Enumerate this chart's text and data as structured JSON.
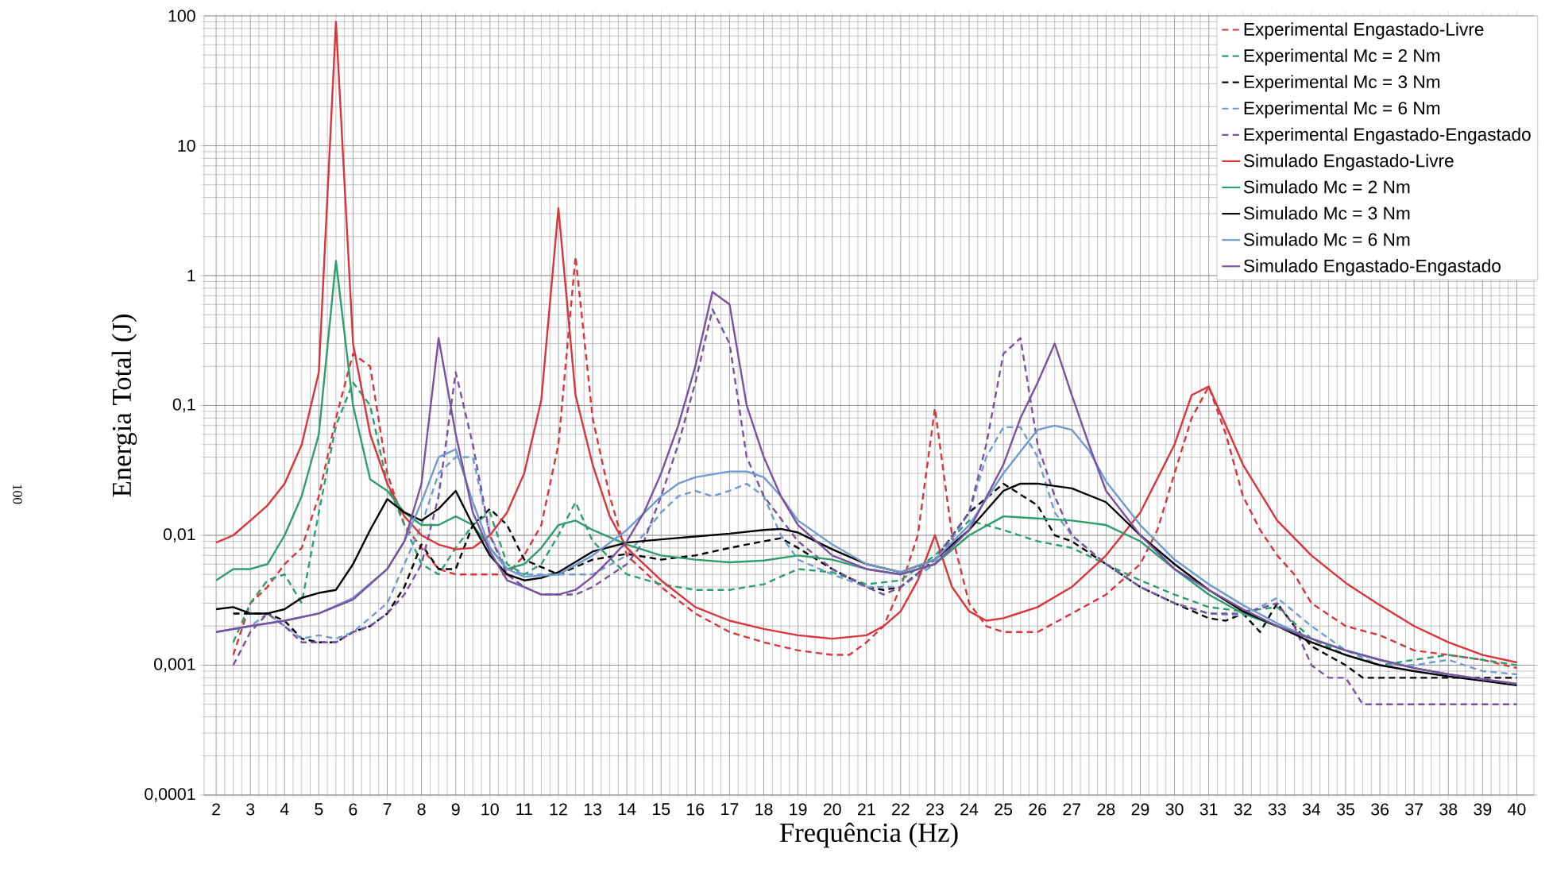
{
  "chart_data": {
    "type": "line",
    "xlabel": "Frequência (Hz)",
    "ylabel": "Energia Total (J)",
    "log": "y",
    "grid": true,
    "legend": "top right",
    "annotations": [
      "100"
    ],
    "xlim": [
      1.65,
      40.5
    ],
    "xticks": [
      2,
      3,
      4,
      5,
      6,
      7,
      8,
      9,
      10,
      11,
      12,
      13,
      14,
      15,
      16,
      17,
      18,
      19,
      20,
      21,
      22,
      23,
      24,
      25,
      26,
      27,
      28,
      29,
      30,
      31,
      32,
      33,
      34,
      35,
      36,
      37,
      38,
      39,
      40
    ],
    "ylim": [
      0.0001,
      100
    ],
    "yticks": [
      {
        "value": 0.0001,
        "label": "0,0001"
      },
      {
        "value": 0.001,
        "label": "0,001"
      },
      {
        "value": 0.01,
        "label": "0,01"
      },
      {
        "value": 0.1,
        "label": "0,1"
      },
      1,
      10,
      100
    ],
    "series": [
      {
        "name": "Experimental Engastado-Livre",
        "color": "#d9353a",
        "line_style": "dashed",
        "x": [
          2.5,
          3,
          3.5,
          4,
          4.5,
          5,
          5.5,
          6,
          6.5,
          7,
          7.5,
          8,
          8.5,
          9,
          10,
          10.5,
          11,
          11.5,
          12,
          12.5,
          13,
          13.5,
          14,
          15,
          16,
          17,
          18,
          19,
          20,
          20.5,
          21,
          21.5,
          22,
          22.5,
          23,
          23.5,
          24,
          24.5,
          25,
          26,
          27,
          28,
          29,
          29.5,
          30,
          30.5,
          31,
          31.5,
          32,
          32.5,
          33,
          33.5,
          34,
          35,
          36,
          37,
          38,
          39,
          40
        ],
        "values": [
          0.0012,
          0.003,
          0.004,
          0.006,
          0.008,
          0.02,
          0.08,
          0.25,
          0.2,
          0.03,
          0.012,
          0.008,
          0.0055,
          0.005,
          0.005,
          0.005,
          0.007,
          0.012,
          0.05,
          1.4,
          0.08,
          0.02,
          0.007,
          0.004,
          0.0025,
          0.0018,
          0.0015,
          0.0013,
          0.0012,
          0.0012,
          0.0015,
          0.002,
          0.004,
          0.01,
          0.095,
          0.01,
          0.003,
          0.002,
          0.0018,
          0.0018,
          0.0025,
          0.0035,
          0.006,
          0.011,
          0.03,
          0.08,
          0.14,
          0.06,
          0.02,
          0.011,
          0.007,
          0.005,
          0.003,
          0.002,
          0.0017,
          0.0013,
          0.0012,
          0.0011,
          0.00095
        ]
      },
      {
        "name": "Experimental Mc = 2 Nm",
        "color": "#2e9e6e",
        "line_style": "dashed",
        "x": [
          2.5,
          3,
          3.5,
          4,
          4.5,
          5,
          5.5,
          6,
          6.5,
          7,
          7.5,
          8,
          8.5,
          9,
          9.5,
          10,
          10.5,
          11,
          11.5,
          12,
          12.5,
          13,
          14,
          15,
          16,
          17,
          18,
          19,
          20,
          21,
          22,
          23,
          24,
          25,
          26,
          27,
          28,
          29,
          30,
          31,
          32,
          33,
          34,
          35,
          36,
          37,
          38,
          39,
          40
        ],
        "values": [
          0.0015,
          0.003,
          0.0045,
          0.005,
          0.003,
          0.015,
          0.07,
          0.15,
          0.1,
          0.025,
          0.012,
          0.006,
          0.005,
          0.008,
          0.012,
          0.015,
          0.006,
          0.005,
          0.006,
          0.01,
          0.018,
          0.009,
          0.005,
          0.0042,
          0.0038,
          0.0038,
          0.0042,
          0.0055,
          0.0052,
          0.0042,
          0.0045,
          0.007,
          0.013,
          0.011,
          0.009,
          0.008,
          0.006,
          0.0045,
          0.0035,
          0.0028,
          0.0026,
          0.0028,
          0.0016,
          0.0012,
          0.001,
          0.0011,
          0.0012,
          0.0011,
          0.001
        ]
      },
      {
        "name": "Experimental Mc = 3 Nm",
        "color": "#000000",
        "line_style": "dashed",
        "x": [
          2.5,
          3,
          3.5,
          4,
          4.5,
          5,
          5.5,
          6,
          6.5,
          7,
          7.5,
          8,
          8.5,
          9,
          9.5,
          10,
          10.5,
          11,
          12,
          13,
          14,
          15,
          16,
          17,
          18,
          18.5,
          19,
          20,
          21,
          21.5,
          22,
          23,
          24,
          25,
          26,
          26.5,
          27,
          28,
          29,
          30,
          31,
          31.5,
          32,
          32.5,
          33,
          33.5,
          34,
          35,
          35.5,
          40
        ],
        "values": [
          0.0025,
          0.0025,
          0.0025,
          0.0022,
          0.0016,
          0.0015,
          0.0015,
          0.0018,
          0.002,
          0.0025,
          0.004,
          0.0085,
          0.0055,
          0.0055,
          0.012,
          0.016,
          0.012,
          0.0065,
          0.005,
          0.0065,
          0.0072,
          0.0065,
          0.007,
          0.008,
          0.009,
          0.0095,
          0.008,
          0.0055,
          0.004,
          0.0038,
          0.004,
          0.0065,
          0.015,
          0.025,
          0.017,
          0.01,
          0.009,
          0.006,
          0.004,
          0.003,
          0.0023,
          0.0022,
          0.0025,
          0.0018,
          0.003,
          0.002,
          0.0014,
          0.001,
          0.0008,
          0.0008
        ]
      },
      {
        "name": "Experimental Mc = 6 Nm",
        "color": "#6f9bd0",
        "line_style": "dashed",
        "x": [
          2.5,
          3,
          3.5,
          4,
          4.5,
          5,
          5.5,
          6,
          7,
          8,
          8.5,
          9,
          9.5,
          10,
          10.5,
          11,
          12,
          13,
          14,
          15,
          15.5,
          16,
          16.5,
          17,
          17.5,
          18,
          18.5,
          19,
          20,
          21,
          22,
          23,
          24,
          24.5,
          25,
          25.5,
          26,
          26.5,
          27,
          28,
          29,
          30,
          31,
          32,
          33,
          34,
          35,
          36,
          37,
          38,
          39,
          40
        ],
        "values": [
          0.0019,
          0.002,
          0.0025,
          0.002,
          0.0016,
          0.0017,
          0.0016,
          0.0018,
          0.003,
          0.012,
          0.03,
          0.04,
          0.04,
          0.01,
          0.0055,
          0.005,
          0.005,
          0.005,
          0.007,
          0.015,
          0.02,
          0.022,
          0.02,
          0.022,
          0.025,
          0.02,
          0.01,
          0.0065,
          0.005,
          0.004,
          0.004,
          0.006,
          0.015,
          0.04,
          0.068,
          0.068,
          0.04,
          0.015,
          0.01,
          0.006,
          0.004,
          0.003,
          0.0025,
          0.0024,
          0.0033,
          0.002,
          0.0013,
          0.001,
          0.001,
          0.0011,
          0.0009,
          0.00085
        ]
      },
      {
        "name": "Experimental Engastado-Engastado",
        "color": "#7b52a0",
        "line_style": "dashed",
        "x": [
          2.5,
          3,
          3.5,
          4,
          4.5,
          5,
          5.5,
          6,
          6.5,
          7,
          7.5,
          8,
          8.5,
          9,
          9.5,
          10,
          10.5,
          11,
          11.5,
          12,
          12.5,
          13,
          14,
          14.5,
          15,
          15.5,
          16,
          16.5,
          17,
          17.5,
          18,
          19,
          20,
          21,
          21.5,
          22,
          23,
          24,
          24.5,
          25,
          25.5,
          26,
          26.5,
          27,
          28,
          29,
          30,
          31,
          32,
          33,
          33.5,
          34,
          34.5,
          35,
          35.5,
          40
        ],
        "values": [
          0.001,
          0.0018,
          0.0025,
          0.002,
          0.0015,
          0.0015,
          0.0015,
          0.0018,
          0.002,
          0.0025,
          0.0035,
          0.006,
          0.02,
          0.18,
          0.05,
          0.01,
          0.005,
          0.004,
          0.0035,
          0.0035,
          0.0035,
          0.004,
          0.006,
          0.009,
          0.02,
          0.05,
          0.15,
          0.55,
          0.3,
          0.04,
          0.02,
          0.009,
          0.0055,
          0.004,
          0.0035,
          0.004,
          0.0065,
          0.015,
          0.05,
          0.25,
          0.33,
          0.05,
          0.02,
          0.01,
          0.006,
          0.004,
          0.003,
          0.0025,
          0.0025,
          0.003,
          0.002,
          0.001,
          0.0008,
          0.0008,
          0.0005,
          0.0005
        ]
      },
      {
        "name": "Simulado Engastado-Livre",
        "color": "#d9353a",
        "line_style": "solid",
        "x": [
          2,
          2.5,
          3,
          3.5,
          4,
          4.5,
          5,
          5.5,
          6,
          6.5,
          7,
          7.5,
          8,
          8.5,
          9,
          9.5,
          10,
          10.5,
          11,
          11.5,
          12,
          12.5,
          13,
          13.5,
          14,
          15,
          16,
          17,
          18,
          19,
          20,
          21,
          21.5,
          22,
          22.5,
          23,
          23.5,
          24,
          24.5,
          25,
          26,
          27,
          28,
          29,
          30,
          30.5,
          31,
          31.5,
          32,
          33,
          34,
          35,
          36,
          37,
          38,
          39,
          40
        ],
        "values": [
          0.0088,
          0.01,
          0.013,
          0.017,
          0.025,
          0.05,
          0.18,
          90,
          0.3,
          0.06,
          0.025,
          0.014,
          0.01,
          0.0085,
          0.0078,
          0.008,
          0.01,
          0.015,
          0.03,
          0.11,
          3.3,
          0.12,
          0.035,
          0.014,
          0.008,
          0.0045,
          0.0028,
          0.0022,
          0.0019,
          0.0017,
          0.0016,
          0.0017,
          0.002,
          0.0026,
          0.0045,
          0.01,
          0.004,
          0.0026,
          0.0022,
          0.0023,
          0.0028,
          0.004,
          0.007,
          0.015,
          0.05,
          0.12,
          0.14,
          0.07,
          0.035,
          0.013,
          0.007,
          0.0043,
          0.0029,
          0.002,
          0.0015,
          0.0012,
          0.00105
        ]
      },
      {
        "name": "Simulado Mc = 2 Nm",
        "color": "#2e9e6e",
        "line_style": "solid",
        "x": [
          2,
          2.5,
          3,
          3.5,
          4,
          4.5,
          5,
          5.5,
          6,
          6.5,
          7,
          7.5,
          8,
          8.5,
          9,
          9.5,
          10,
          10.5,
          11,
          11.5,
          12,
          12.5,
          13,
          14,
          15,
          16,
          17,
          18,
          19,
          20,
          21,
          22,
          23,
          24,
          25,
          26,
          27,
          28,
          29,
          30,
          31,
          32,
          33,
          34,
          35,
          36,
          37,
          38
        ],
        "values": [
          0.0045,
          0.0055,
          0.0055,
          0.006,
          0.01,
          0.02,
          0.06,
          1.3,
          0.1,
          0.027,
          0.022,
          0.015,
          0.012,
          0.012,
          0.014,
          0.012,
          0.008,
          0.0055,
          0.006,
          0.008,
          0.012,
          0.013,
          0.011,
          0.0085,
          0.007,
          0.0065,
          0.0062,
          0.0064,
          0.007,
          0.0065,
          0.0055,
          0.005,
          0.006,
          0.01,
          0.014,
          0.0135,
          0.013,
          0.012,
          0.009,
          0.0055,
          0.0035,
          0.0025,
          0.002,
          0.0016,
          0.0013,
          0.0011,
          0.00095,
          0.00085
        ]
      },
      {
        "name": "Simulado Mc = 3 Nm",
        "color": "#000000",
        "line_style": "solid",
        "x": [
          2,
          2.5,
          3,
          3.5,
          4,
          4.5,
          5,
          5.5,
          6,
          6.5,
          7,
          7.5,
          8,
          8.5,
          9,
          9.5,
          10,
          10.5,
          11,
          11.5,
          12,
          13,
          14,
          15,
          16,
          17,
          18,
          18.5,
          19,
          20,
          21,
          22,
          23,
          24,
          25,
          25.5,
          26,
          27,
          28,
          29,
          30,
          31,
          32,
          33,
          34,
          35,
          36,
          37,
          38,
          39,
          40
        ],
        "values": [
          0.0027,
          0.0028,
          0.0025,
          0.0025,
          0.0027,
          0.0033,
          0.0036,
          0.0038,
          0.006,
          0.011,
          0.019,
          0.015,
          0.013,
          0.016,
          0.022,
          0.012,
          0.007,
          0.005,
          0.0045,
          0.0047,
          0.0052,
          0.0075,
          0.0088,
          0.0093,
          0.0098,
          0.0103,
          0.011,
          0.0112,
          0.0105,
          0.0078,
          0.006,
          0.0052,
          0.0065,
          0.011,
          0.022,
          0.025,
          0.025,
          0.023,
          0.018,
          0.01,
          0.006,
          0.0038,
          0.0026,
          0.002,
          0.0015,
          0.0012,
          0.001,
          0.0009,
          0.00082,
          0.00076,
          0.0007
        ]
      },
      {
        "name": "Simulado Mc = 6 Nm",
        "color": "#6f9bd0",
        "line_style": "solid",
        "x": [
          2,
          3,
          4,
          5,
          6,
          7,
          7.5,
          8,
          8.5,
          9,
          9.5,
          10,
          10.5,
          11,
          12,
          13,
          14,
          15,
          15.5,
          16,
          17,
          17.5,
          18,
          18.5,
          19,
          20,
          21,
          22,
          23,
          24,
          25,
          26,
          26.5,
          27,
          27.5,
          28,
          29,
          30,
          31,
          32,
          33,
          34,
          35,
          36,
          37,
          38,
          39,
          40
        ],
        "values": [
          0.0018,
          0.002,
          0.0022,
          0.0025,
          0.0033,
          0.0055,
          0.009,
          0.018,
          0.04,
          0.046,
          0.018,
          0.008,
          0.0055,
          0.0048,
          0.005,
          0.007,
          0.011,
          0.02,
          0.025,
          0.028,
          0.031,
          0.031,
          0.028,
          0.02,
          0.013,
          0.0085,
          0.006,
          0.0052,
          0.0065,
          0.012,
          0.03,
          0.065,
          0.07,
          0.065,
          0.045,
          0.026,
          0.012,
          0.0065,
          0.0042,
          0.0029,
          0.0021,
          0.0016,
          0.0013,
          0.0011,
          0.00095,
          0.00085,
          0.00078,
          0.00072
        ]
      },
      {
        "name": "Simulado Engastado-Engastado",
        "color": "#7b52a0",
        "line_style": "solid",
        "x": [
          2,
          3,
          4,
          5,
          6,
          7,
          7.5,
          8,
          8.5,
          9,
          9.5,
          10,
          10.5,
          11,
          11.5,
          12,
          12.5,
          13,
          13.5,
          14,
          14.5,
          15,
          15.5,
          16,
          16.5,
          17,
          17.5,
          18,
          18.5,
          19,
          20,
          21,
          22,
          23,
          24,
          25,
          25.5,
          26,
          26.5,
          27,
          27.5,
          28,
          29,
          30,
          31,
          32,
          33,
          34,
          35,
          36,
          37,
          38,
          39,
          40
        ],
        "values": [
          0.0018,
          0.002,
          0.0022,
          0.0025,
          0.0032,
          0.0055,
          0.009,
          0.025,
          0.33,
          0.06,
          0.015,
          0.0075,
          0.0045,
          0.004,
          0.0035,
          0.0035,
          0.0038,
          0.0048,
          0.0065,
          0.009,
          0.015,
          0.03,
          0.07,
          0.2,
          0.75,
          0.6,
          0.1,
          0.04,
          0.02,
          0.012,
          0.007,
          0.0055,
          0.005,
          0.006,
          0.011,
          0.035,
          0.08,
          0.15,
          0.3,
          0.12,
          0.05,
          0.022,
          0.01,
          0.0055,
          0.0038,
          0.0027,
          0.002,
          0.0016,
          0.0013,
          0.0011,
          0.00095,
          0.00085,
          0.00078,
          0.00072
        ]
      }
    ]
  }
}
